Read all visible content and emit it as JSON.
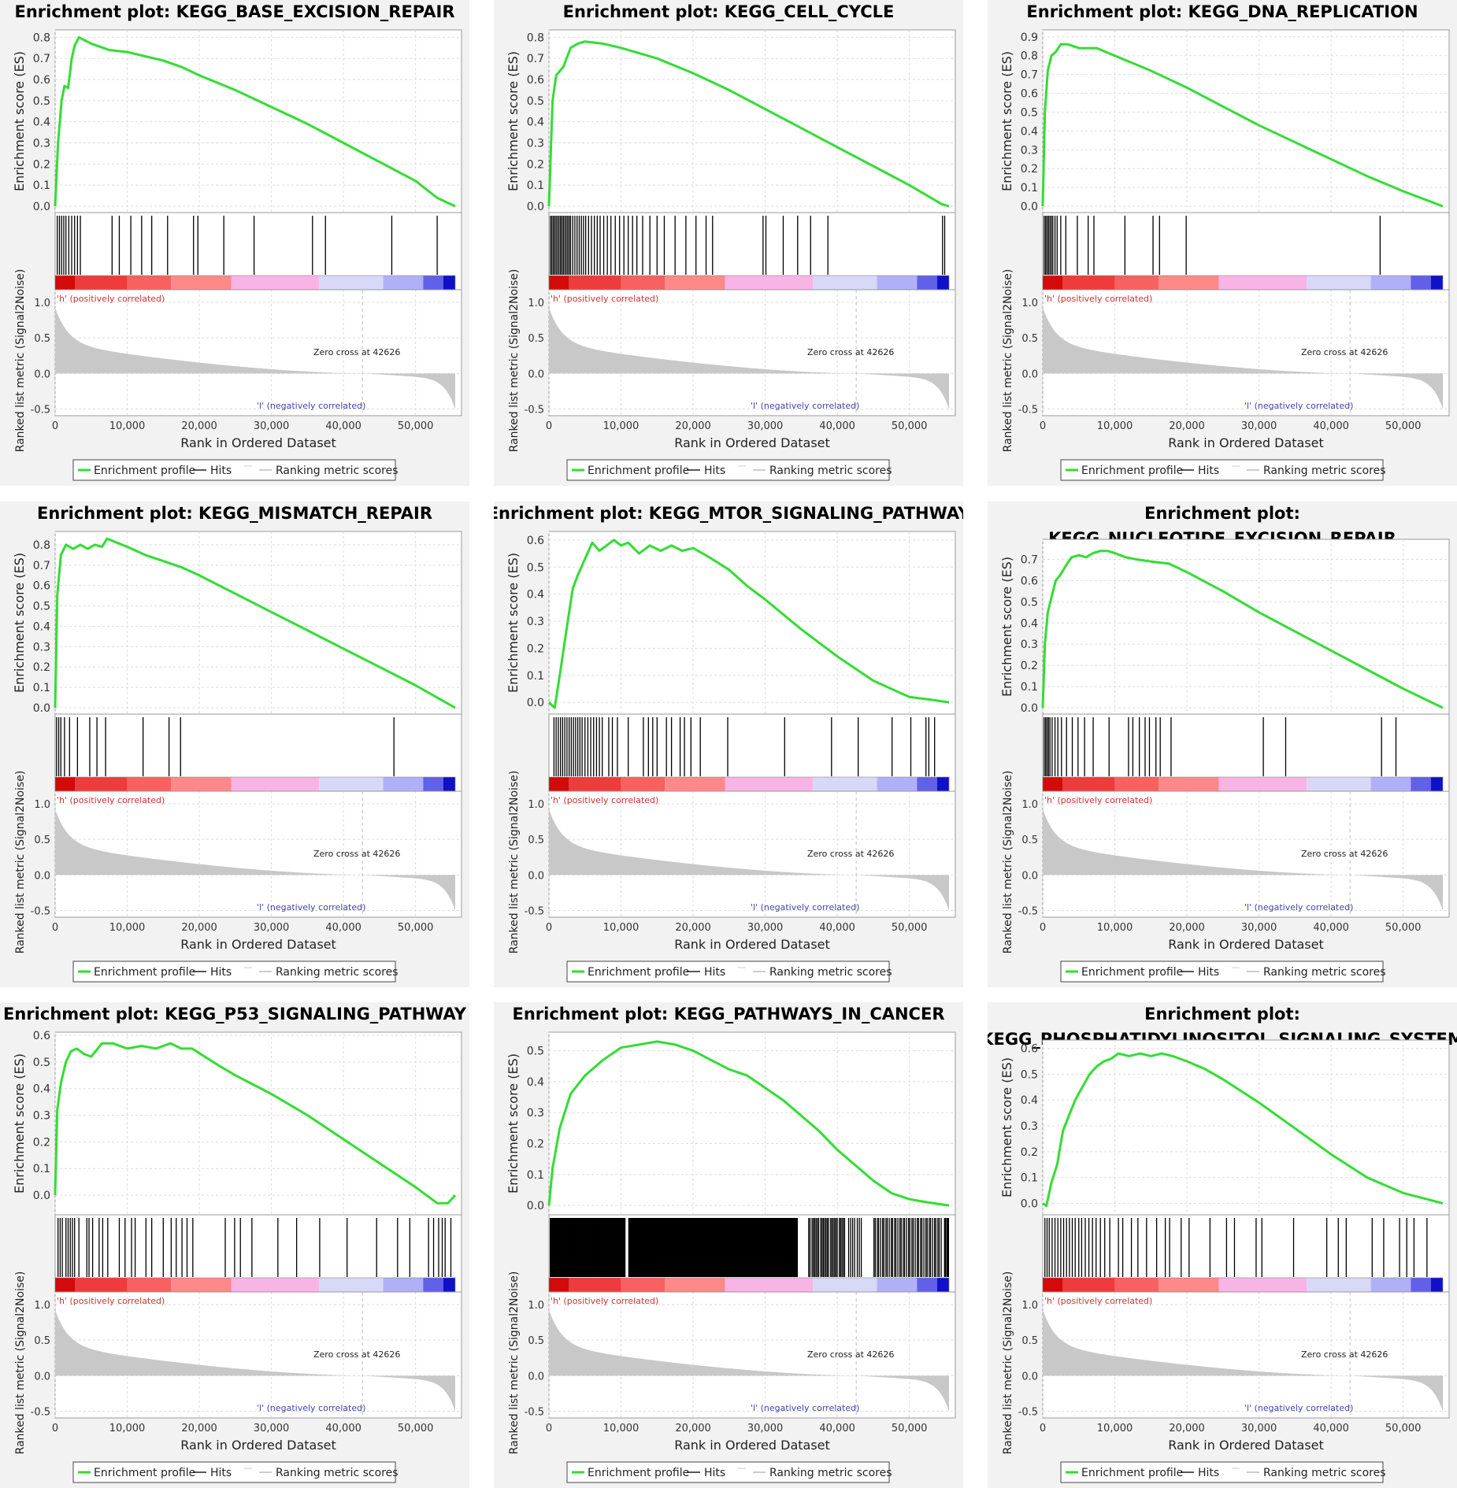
{
  "labels": {
    "es_ylabel": "Enrichment score (ES)",
    "metric_ylabel": "Ranked list metric (Signal2Noise)",
    "xlabel": "Rank in Ordered Dataset",
    "pos_label": "'h' (positively correlated)",
    "neg_label": "'l' (negatively correlated)",
    "zero_cross": "Zero cross at 42626",
    "legend_enrichment": "Enrichment profile",
    "legend_hits": "Hits",
    "legend_ranking": "Ranking metric scores"
  },
  "colors": {
    "profile": "#33dd33",
    "hits": "#000000",
    "metric_fill": "#c8c8c8",
    "pos_text": "#cc3333",
    "neg_text": "#4444aa",
    "panel_bg": "#f2f2f2",
    "heat_stops": [
      "#d20a0a",
      "#ee3b3b",
      "#f96060",
      "#ff8888",
      "#f9b4e6",
      "#d8d8f8",
      "#b0b0f8",
      "#6060e8",
      "#1010c8"
    ]
  },
  "shared_axes": {
    "x_ticks": [
      0,
      10000,
      20000,
      30000,
      40000,
      50000
    ],
    "x_tick_labels": [
      "0",
      "10,000",
      "20,000",
      "30,000",
      "40,000",
      "50,000"
    ],
    "x_max": 55500,
    "metric_ticks": [
      -0.5,
      0.0,
      0.5,
      1.0
    ],
    "metric_tick_labels": [
      "-0.5",
      "0.0",
      "0.5",
      "1.0"
    ],
    "metric_ylim": [
      -0.55,
      1.0
    ],
    "zero_cross_rank": 42626
  },
  "chart_data": [
    {
      "type": "line",
      "title_lines": [
        "Enrichment plot: KEGG_BASE_EXCISION_REPAIR"
      ],
      "ylim": [
        0,
        0.82
      ],
      "yticks": [
        0.0,
        0.1,
        0.2,
        0.3,
        0.4,
        0.5,
        0.6,
        0.7,
        0.8
      ],
      "ytick_labels": [
        "0.0",
        "0.1",
        "0.2",
        "0.3",
        "0.4",
        "0.5",
        "0.6",
        "0.7",
        "0.8"
      ],
      "series": [
        {
          "x": [
            0,
            400,
            900,
            1300,
            1800,
            2300,
            2700,
            3300,
            5000,
            7500,
            10000,
            12500,
            15000,
            17500,
            20000,
            25000,
            30000,
            35000,
            40000,
            45000,
            50000,
            53000,
            55500
          ],
          "y": [
            0,
            0.3,
            0.5,
            0.57,
            0.56,
            0.7,
            0.76,
            0.8,
            0.77,
            0.74,
            0.73,
            0.71,
            0.69,
            0.66,
            0.62,
            0.55,
            0.47,
            0.39,
            0.3,
            0.21,
            0.12,
            0.04,
            0.0
          ]
        }
      ],
      "hits": [
        300,
        600,
        900,
        1200,
        1500,
        1900,
        2300,
        2700,
        3100,
        3500,
        7900,
        8900,
        10500,
        12000,
        13400,
        15600,
        19200,
        19800,
        23400,
        27600,
        35700,
        37500,
        46700,
        53000
      ]
    },
    {
      "type": "line",
      "title_lines": [
        "Enrichment plot: KEGG_CELL_CYCLE"
      ],
      "ylim": [
        0,
        0.82
      ],
      "yticks": [
        0.0,
        0.1,
        0.2,
        0.3,
        0.4,
        0.5,
        0.6,
        0.7,
        0.8
      ],
      "ytick_labels": [
        "0.0",
        "0.1",
        "0.2",
        "0.3",
        "0.4",
        "0.5",
        "0.6",
        "0.7",
        "0.8"
      ],
      "series": [
        {
          "x": [
            0,
            500,
            1000,
            2000,
            3000,
            4000,
            5000,
            7500,
            10000,
            15000,
            20000,
            25000,
            30000,
            35000,
            40000,
            45000,
            50000,
            54500,
            55500
          ],
          "y": [
            0,
            0.5,
            0.62,
            0.66,
            0.75,
            0.77,
            0.78,
            0.77,
            0.75,
            0.7,
            0.63,
            0.55,
            0.46,
            0.37,
            0.28,
            0.19,
            0.1,
            0.01,
            0.0
          ]
        }
      ],
      "hits": [
        200,
        400,
        600,
        800,
        1000,
        1200,
        1400,
        1600,
        1800,
        2000,
        2200,
        2400,
        2600,
        2800,
        3000,
        3300,
        3600,
        3900,
        4200,
        4500,
        4800,
        5100,
        5500,
        5900,
        6300,
        6700,
        7100,
        7600,
        8100,
        8600,
        9200,
        9800,
        10400,
        11000,
        11600,
        12200,
        13000,
        14000,
        15000,
        16000,
        17500,
        19000,
        20400,
        21800,
        22700,
        29700,
        30100,
        32500,
        34500,
        36300,
        38700,
        54600,
        54900
      ]
    },
    {
      "type": "line",
      "title_lines": [
        "Enrichment plot: KEGG_DNA_REPLICATION"
      ],
      "ylim": [
        0,
        0.92
      ],
      "yticks": [
        0.0,
        0.1,
        0.2,
        0.3,
        0.4,
        0.5,
        0.6,
        0.7,
        0.8,
        0.9
      ],
      "ytick_labels": [
        "0.0",
        "0.1",
        "0.2",
        "0.3",
        "0.4",
        "0.5",
        "0.6",
        "0.7",
        "0.8",
        "0.9"
      ],
      "series": [
        {
          "x": [
            0,
            300,
            700,
            1200,
            1800,
            2500,
            3500,
            5000,
            7500,
            10000,
            15000,
            20000,
            25000,
            30000,
            35000,
            40000,
            45000,
            50000,
            55500
          ],
          "y": [
            0,
            0.5,
            0.72,
            0.8,
            0.82,
            0.86,
            0.86,
            0.84,
            0.84,
            0.8,
            0.72,
            0.63,
            0.53,
            0.43,
            0.34,
            0.25,
            0.16,
            0.08,
            0.0
          ]
        }
      ],
      "hits": [
        200,
        400,
        600,
        800,
        1000,
        1200,
        1400,
        1700,
        2000,
        2500,
        3200,
        4800,
        6300,
        7100,
        11400,
        15300,
        16200,
        19900,
        46800
      ]
    },
    {
      "type": "line",
      "title_lines": [
        "Enrichment plot: KEGG_MISMATCH_REPAIR"
      ],
      "ylim": [
        0,
        0.85
      ],
      "yticks": [
        0.0,
        0.1,
        0.2,
        0.3,
        0.4,
        0.5,
        0.6,
        0.7,
        0.8
      ],
      "ytick_labels": [
        "0.0",
        "0.1",
        "0.2",
        "0.3",
        "0.4",
        "0.5",
        "0.6",
        "0.7",
        "0.8"
      ],
      "series": [
        {
          "x": [
            0,
            300,
            800,
            1500,
            2500,
            3500,
            4500,
            5500,
            6500,
            7200,
            10000,
            12500,
            15000,
            17500,
            20000,
            25000,
            30000,
            35000,
            40000,
            45000,
            50000,
            55500
          ],
          "y": [
            0,
            0.55,
            0.75,
            0.8,
            0.78,
            0.8,
            0.78,
            0.8,
            0.79,
            0.83,
            0.79,
            0.75,
            0.72,
            0.69,
            0.65,
            0.56,
            0.47,
            0.38,
            0.29,
            0.2,
            0.11,
            0.0
          ]
        }
      ],
      "hits": [
        200,
        500,
        800,
        1300,
        2000,
        3100,
        4800,
        5800,
        7000,
        12200,
        15800,
        17400,
        47000
      ]
    },
    {
      "type": "line",
      "title_lines": [
        "Enrichment plot: KEGG_MTOR_SIGNALING_PATHWAY"
      ],
      "ylim": [
        -0.02,
        0.62
      ],
      "yticks": [
        0.0,
        0.1,
        0.2,
        0.3,
        0.4,
        0.5,
        0.6
      ],
      "ytick_labels": [
        "0.0",
        "0.1",
        "0.2",
        "0.3",
        "0.4",
        "0.5",
        "0.6"
      ],
      "series": [
        {
          "x": [
            0,
            800,
            1500,
            2500,
            3300,
            4000,
            5000,
            6000,
            7000,
            8000,
            9000,
            10000,
            11000,
            12500,
            14000,
            15500,
            17000,
            18500,
            20000,
            22000,
            25000,
            27500,
            30000,
            35000,
            40000,
            45000,
            50000,
            53000,
            55500
          ],
          "y": [
            0,
            -0.02,
            0.1,
            0.28,
            0.42,
            0.47,
            0.53,
            0.59,
            0.56,
            0.58,
            0.6,
            0.58,
            0.59,
            0.55,
            0.58,
            0.56,
            0.58,
            0.56,
            0.57,
            0.54,
            0.49,
            0.43,
            0.38,
            0.27,
            0.17,
            0.08,
            0.02,
            0.01,
            0.0
          ]
        }
      ],
      "hits": [
        700,
        1000,
        1300,
        1600,
        1900,
        2200,
        2500,
        2800,
        3100,
        3400,
        3700,
        4000,
        4300,
        4600,
        5000,
        5400,
        5800,
        6200,
        6600,
        7000,
        7400,
        8300,
        8800,
        9500,
        11000,
        13100,
        13800,
        14400,
        15000,
        16300,
        17000,
        18200,
        18800,
        19700,
        21000,
        24800,
        32700,
        39200,
        42900,
        47600,
        50200,
        52300,
        52700,
        53500
      ]
    },
    {
      "type": "line",
      "title_lines": [
        "Enrichment plot:",
        "KEGG_NUCLEOTIDE_EXCISION_REPAIR"
      ],
      "ylim": [
        0,
        0.78
      ],
      "yticks": [
        0.0,
        0.1,
        0.2,
        0.3,
        0.4,
        0.5,
        0.6,
        0.7
      ],
      "ytick_labels": [
        "0.0",
        "0.1",
        "0.2",
        "0.3",
        "0.4",
        "0.5",
        "0.6",
        "0.7"
      ],
      "series": [
        {
          "x": [
            0,
            300,
            700,
            1200,
            1800,
            2500,
            3200,
            4000,
            5000,
            6000,
            7000,
            8000,
            9000,
            10000,
            11500,
            13000,
            15000,
            17500,
            20000,
            25000,
            30000,
            35000,
            40000,
            45000,
            50000,
            55500
          ],
          "y": [
            0,
            0.3,
            0.45,
            0.52,
            0.6,
            0.63,
            0.67,
            0.71,
            0.72,
            0.71,
            0.73,
            0.74,
            0.74,
            0.73,
            0.71,
            0.7,
            0.69,
            0.68,
            0.64,
            0.55,
            0.45,
            0.36,
            0.27,
            0.18,
            0.09,
            0.0
          ]
        }
      ],
      "hits": [
        200,
        400,
        600,
        800,
        1000,
        1300,
        1700,
        2100,
        2600,
        3300,
        4100,
        4900,
        5800,
        7000,
        9200,
        11900,
        12500,
        13400,
        14200,
        14800,
        15700,
        16300,
        17800,
        30600,
        33700,
        47000,
        49000
      ]
    },
    {
      "type": "line",
      "title_lines": [
        "Enrichment plot: KEGG_P53_SIGNALING_PATHWAY"
      ],
      "ylim": [
        -0.05,
        0.6
      ],
      "yticks": [
        0.0,
        0.1,
        0.2,
        0.3,
        0.4,
        0.5,
        0.6
      ],
      "ytick_labels": [
        "0.0",
        "0.1",
        "0.2",
        "0.3",
        "0.4",
        "0.5",
        "0.6"
      ],
      "series": [
        {
          "x": [
            0,
            300,
            800,
            1500,
            2200,
            3000,
            4000,
            5000,
            6500,
            8000,
            10000,
            12000,
            14000,
            16000,
            17500,
            19000,
            22500,
            25000,
            30000,
            35000,
            40000,
            45000,
            50000,
            53000,
            54500,
            55500
          ],
          "y": [
            0,
            0.32,
            0.42,
            0.5,
            0.54,
            0.55,
            0.53,
            0.52,
            0.57,
            0.57,
            0.55,
            0.56,
            0.55,
            0.57,
            0.55,
            0.55,
            0.49,
            0.45,
            0.38,
            0.3,
            0.21,
            0.12,
            0.03,
            -0.03,
            -0.03,
            0.0
          ]
        }
      ],
      "hits": [
        400,
        700,
        1000,
        1500,
        1800,
        2100,
        2400,
        2700,
        3300,
        4400,
        4700,
        5200,
        6100,
        6600,
        7300,
        8900,
        9700,
        10600,
        11100,
        12600,
        13400,
        15000,
        16100,
        16800,
        17600,
        18300,
        19100,
        23600,
        24900,
        25700,
        27300,
        30900,
        33500,
        36700,
        40500,
        44600,
        47500,
        49200,
        51800,
        52500,
        53200,
        53700,
        54100,
        54900
      ]
    },
    {
      "type": "line",
      "title_lines": [
        "Enrichment plot: KEGG_PATHWAYS_IN_CANCER"
      ],
      "ylim": [
        -0.01,
        0.55
      ],
      "yticks": [
        0.0,
        0.1,
        0.2,
        0.3,
        0.4,
        0.5
      ],
      "ytick_labels": [
        "0.0",
        "0.1",
        "0.2",
        "0.3",
        "0.4",
        "0.5"
      ],
      "series": [
        {
          "x": [
            0,
            500,
            1500,
            3000,
            5000,
            7500,
            10000,
            12500,
            15000,
            17500,
            20000,
            22500,
            25000,
            27500,
            30000,
            32500,
            35000,
            37500,
            40000,
            42500,
            45000,
            47500,
            50000,
            52500,
            55500
          ],
          "y": [
            0,
            0.12,
            0.25,
            0.36,
            0.42,
            0.47,
            0.51,
            0.52,
            0.53,
            0.52,
            0.5,
            0.47,
            0.44,
            0.42,
            0.38,
            0.34,
            0.29,
            0.24,
            0.18,
            0.13,
            0.08,
            0.04,
            0.02,
            0.01,
            0.0
          ]
        }
      ],
      "hits_dense_ranges": [
        [
          100,
          10500
        ],
        [
          11000,
          34500
        ],
        [
          36000,
          41000
        ],
        [
          41500,
          43500
        ],
        [
          45000,
          54500
        ],
        [
          54800,
          55400
        ]
      ],
      "hits_density": [
        5,
        3,
        1.2,
        0.8,
        1,
        2
      ],
      "hits": []
    },
    {
      "type": "line",
      "title_lines": [
        "Enrichment plot:",
        "KEGG_PHOSPHATIDYLINOSITOL_SIGNALING_SYSTEM"
      ],
      "ylim": [
        -0.02,
        0.62
      ],
      "yticks": [
        0.0,
        0.1,
        0.2,
        0.3,
        0.4,
        0.5,
        0.6
      ],
      "ytick_labels": [
        "0.0",
        "0.1",
        "0.2",
        "0.3",
        "0.4",
        "0.5",
        "0.6"
      ],
      "series": [
        {
          "x": [
            0,
            500,
            1200,
            2000,
            2800,
            3500,
            4500,
            5500,
            6500,
            7500,
            8500,
            9500,
            10500,
            12000,
            13500,
            15000,
            16500,
            18000,
            20000,
            22500,
            25000,
            30000,
            35000,
            40000,
            45000,
            50000,
            55500
          ],
          "y": [
            0,
            -0.01,
            0.08,
            0.15,
            0.28,
            0.33,
            0.4,
            0.45,
            0.5,
            0.53,
            0.55,
            0.56,
            0.58,
            0.57,
            0.58,
            0.57,
            0.58,
            0.57,
            0.55,
            0.52,
            0.48,
            0.39,
            0.29,
            0.19,
            0.1,
            0.04,
            0.0
          ]
        }
      ],
      "hits": [
        300,
        600,
        900,
        1300,
        1700,
        2100,
        2500,
        2900,
        3300,
        3700,
        4100,
        4500,
        5000,
        5400,
        5900,
        6400,
        6900,
        7400,
        8000,
        8600,
        9300,
        10500,
        11100,
        12300,
        13200,
        14400,
        15800,
        17000,
        17600,
        19200,
        20300,
        23200,
        25500,
        26600,
        29600,
        30400,
        34800,
        39400,
        41000,
        42100,
        45700,
        47300,
        49500,
        50500,
        51500,
        53300
      ]
    }
  ]
}
